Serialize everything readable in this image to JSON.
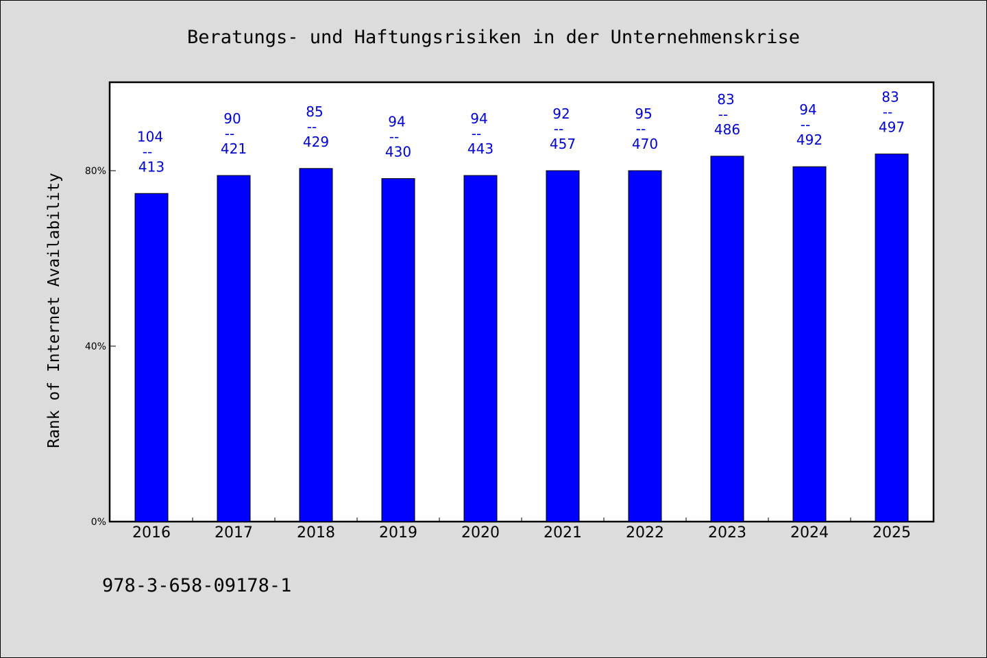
{
  "chart_data": {
    "type": "bar",
    "title": "Beratungs- und Haftungsrisiken in der Unternehmenskrise",
    "xlabel": "",
    "ylabel": "Rank of Internet Availability",
    "categories": [
      "2016",
      "2017",
      "2018",
      "2019",
      "2020",
      "2021",
      "2022",
      "2023",
      "2024",
      "2025"
    ],
    "values": [
      74.8,
      78.9,
      80.5,
      78.2,
      78.9,
      80.0,
      80.0,
      83.3,
      80.9,
      83.8
    ],
    "numerators": [
      "104",
      "90",
      "85",
      "94",
      "94",
      "92",
      "95",
      "83",
      "94",
      "83"
    ],
    "denominators": [
      "413",
      "421",
      "429",
      "430",
      "443",
      "457",
      "470",
      "486",
      "492",
      "497"
    ],
    "fraction_separator": "--",
    "ylim": [
      0,
      100
    ],
    "yticks": [
      0,
      40,
      80
    ],
    "ytick_labels": [
      "0%",
      "40%",
      "80%"
    ],
    "grid": false,
    "bar_color": "#0000ff",
    "label_color": "#0000cc",
    "plot_background": "#ffffff",
    "page_background": "#dcdcdc"
  },
  "footnote": "978-3-658-09178-1"
}
